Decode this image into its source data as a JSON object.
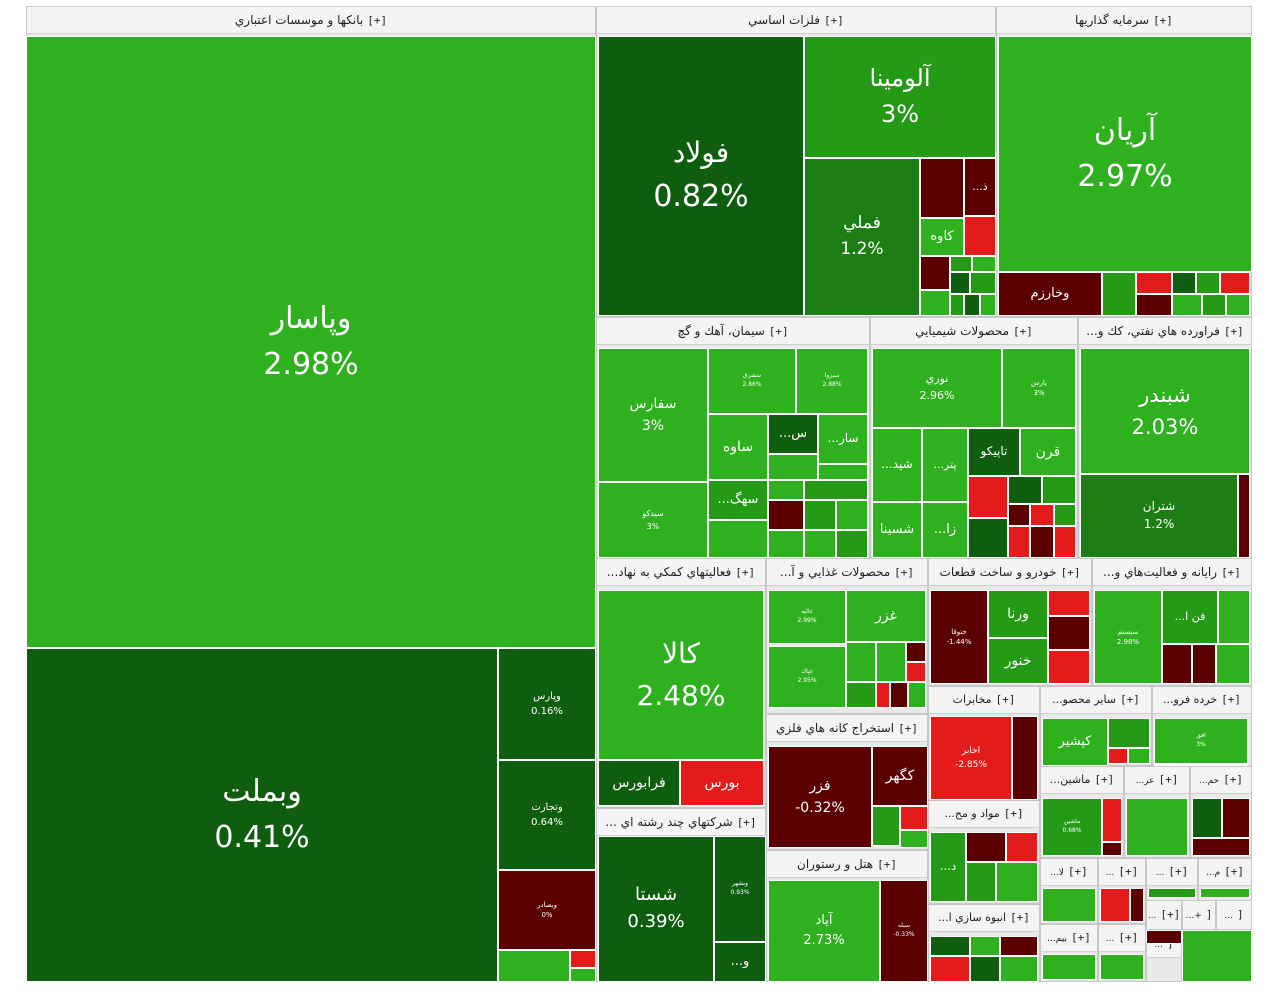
{
  "chart_data": {
    "type": "treemap",
    "title": "",
    "color_scale": {
      "positive_light": "#2fb01e",
      "positive_dark": "#0f5e0f",
      "negative_light": "#e31b1b",
      "negative_dark": "#5a0000"
    },
    "sectors": [
      {
        "name": "بانکها و موسسات اعتباري",
        "expand": "[+]",
        "stocks": [
          {
            "symbol": "وپاسار",
            "change": "2.98%",
            "value": 2.98
          },
          {
            "symbol": "وبملت",
            "change": "0.41%",
            "value": 0.41
          },
          {
            "symbol": "وپارس",
            "change": "0.16%",
            "value": 0.16
          },
          {
            "symbol": "وتجارت",
            "change": "0.64%",
            "value": 0.64
          },
          {
            "symbol": "وبصادر",
            "change": "0%",
            "value": 0
          }
        ]
      },
      {
        "name": "فلزات اساسي",
        "expand": "[+]",
        "stocks": [
          {
            "symbol": "فولاد",
            "change": "0.82%",
            "value": 0.82
          },
          {
            "symbol": "آلومينا",
            "change": "3%",
            "value": 3
          },
          {
            "symbol": "فملي",
            "change": "1.2%",
            "value": 1.2
          },
          {
            "symbol": "كاوه",
            "change": "",
            "value": 2
          },
          {
            "symbol": "ذ...",
            "change": "",
            "value": -2
          }
        ]
      },
      {
        "name": "سرمايه گذاريها",
        "expand": "[+]",
        "stocks": [
          {
            "symbol": "آريان",
            "change": "2.97%",
            "value": 2.97
          },
          {
            "symbol": "وخارزم",
            "change": "",
            "value": -3
          }
        ]
      },
      {
        "name": "سيمان، آهك و گچ",
        "expand": "[+]",
        "stocks": [
          {
            "symbol": "سفارس",
            "change": "3%",
            "value": 3
          },
          {
            "symbol": "سيدكو",
            "change": "3%",
            "value": 3
          },
          {
            "symbol": "سشرق",
            "change": "2.86%",
            "value": 2.86
          },
          {
            "symbol": "سبزوا",
            "change": "2.88%",
            "value": 2.88
          },
          {
            "symbol": "ساوه",
            "change": "",
            "value": 2
          },
          {
            "symbol": "س...",
            "change": "",
            "value": 0.3
          },
          {
            "symbol": "سار...",
            "change": "",
            "value": 2
          },
          {
            "symbol": "سهگ...",
            "change": "",
            "value": 2
          }
        ]
      },
      {
        "name": "محصولات شيميايي",
        "expand": "[+]",
        "stocks": [
          {
            "symbol": "نوري",
            "change": "2.96%",
            "value": 2.96
          },
          {
            "symbol": "پارس",
            "change": "3%",
            "value": 3
          },
          {
            "symbol": "شيد...",
            "change": "",
            "value": 2
          },
          {
            "symbol": "پتر...",
            "change": "",
            "value": 2
          },
          {
            "symbol": "تاپيكو",
            "change": "",
            "value": 0.4
          },
          {
            "symbol": "قرن",
            "change": "",
            "value": 2
          },
          {
            "symbol": "شسينا",
            "change": "",
            "value": 2
          },
          {
            "symbol": "زا...",
            "change": "",
            "value": 2
          }
        ]
      },
      {
        "name": "فراورده هاي نفتي، كك و...",
        "expand": "[+]",
        "stocks": [
          {
            "symbol": "شبندر",
            "change": "2.03%",
            "value": 2.03
          },
          {
            "symbol": "شتران",
            "change": "1.2%",
            "value": 1.2
          }
        ]
      },
      {
        "name": "فعاليتهاي كمكي به نهاد...",
        "expand": "[+]",
        "stocks": [
          {
            "symbol": "كالا",
            "change": "2.48%",
            "value": 2.48
          },
          {
            "symbol": "فرابورس",
            "change": "",
            "value": 0.4
          },
          {
            "symbol": "بورس",
            "change": "",
            "value": -2
          }
        ]
      },
      {
        "name": "محصولات غذايي و آ...",
        "expand": "[+]",
        "stocks": [
          {
            "symbol": "غزر",
            "change": "",
            "value": 2
          },
          {
            "symbol": "غاليه",
            "change": "2.99%",
            "value": 2.99
          },
          {
            "symbol": "غپاك",
            "change": "2.95%",
            "value": 2.95
          }
        ]
      },
      {
        "name": "خودرو و ساخت قطعات",
        "expand": "[+]",
        "stocks": [
          {
            "symbol": "ختوقا",
            "change": "-1.44%",
            "value": -1.44
          },
          {
            "symbol": "ورنا",
            "change": "",
            "value": 2
          },
          {
            "symbol": "خنور",
            "change": "",
            "value": 2
          }
        ]
      },
      {
        "name": "رايانه و فعاليت‌هاي و...",
        "expand": "[+]",
        "stocks": [
          {
            "symbol": "سيستم",
            "change": "2.98%",
            "value": 2.98
          },
          {
            "symbol": "فن ا...",
            "change": "",
            "value": 2
          }
        ]
      },
      {
        "name": "مخابرات",
        "expand": "[+]",
        "stocks": [
          {
            "symbol": "اخابر",
            "change": "-2.85%",
            "value": -2.85
          }
        ]
      },
      {
        "name": "ساير محصو...",
        "expand": "[+]",
        "stocks": [
          {
            "symbol": "كپشير",
            "change": "",
            "value": 2
          }
        ]
      },
      {
        "name": "خرده فرو...",
        "expand": "[+]",
        "stocks": [
          {
            "symbol": "افق",
            "change": "3%",
            "value": 3
          }
        ]
      },
      {
        "name": "استخراج كانه هاي فلزي",
        "expand": "[+]",
        "stocks": [
          {
            "symbol": "فزر",
            "change": "-0.32%",
            "value": -0.32
          },
          {
            "symbol": "كگهر",
            "change": "",
            "value": -2
          }
        ]
      },
      {
        "name": "شركتهاي چند رشته اي ...",
        "expand": "[+]",
        "stocks": [
          {
            "symbol": "شستا",
            "change": "0.39%",
            "value": 0.39
          },
          {
            "symbol": "وبشهر",
            "change": "0.93%",
            "value": 0.93
          },
          {
            "symbol": "و...",
            "change": "",
            "value": 0.3
          }
        ]
      },
      {
        "name": "هتل و رستوران",
        "expand": "[+]",
        "stocks": [
          {
            "symbol": "آياد",
            "change": "2.73%",
            "value": 2.73
          },
          {
            "symbol": "سبله",
            "change": "-0.33%",
            "value": -0.33
          }
        ]
      },
      {
        "name": "مواد و مح...",
        "expand": "[+]",
        "stocks": [
          {
            "symbol": "د...",
            "change": "",
            "value": 2
          }
        ]
      },
      {
        "name": "ماشين...",
        "expand": "[+]",
        "stocks": [
          {
            "symbol": "ماشين",
            "change": "0.68%",
            "value": 0.68
          }
        ]
      },
      {
        "name": "عر...",
        "expand": "[+]",
        "stocks": []
      },
      {
        "name": "حم...",
        "expand": "[+]",
        "stocks": []
      },
      {
        "name": "انبوه سازي ا...",
        "expand": "[+]",
        "stocks": []
      },
      {
        "name": "لا...",
        "expand": "[+]",
        "stocks": []
      },
      {
        "name": "...",
        "expand": "[+]",
        "stocks": []
      },
      {
        "name": "...",
        "expand": "[+]",
        "stocks": []
      },
      {
        "name": "م...",
        "expand": "[+]",
        "stocks": []
      },
      {
        "name": "بيم...",
        "expand": "[+]",
        "stocks": []
      },
      {
        "name": "...",
        "expand": "[+]",
        "stocks": []
      },
      {
        "name": "...",
        "expand": "[+]",
        "stocks": []
      },
      {
        "name": "+...",
        "expand": "[",
        "stocks": []
      },
      {
        "name": "...",
        "expand": "[",
        "stocks": []
      },
      {
        "name": "...",
        "expand": "[",
        "stocks": []
      },
      {
        "name": "...",
        "expand": "[",
        "stocks": []
      }
    ]
  }
}
